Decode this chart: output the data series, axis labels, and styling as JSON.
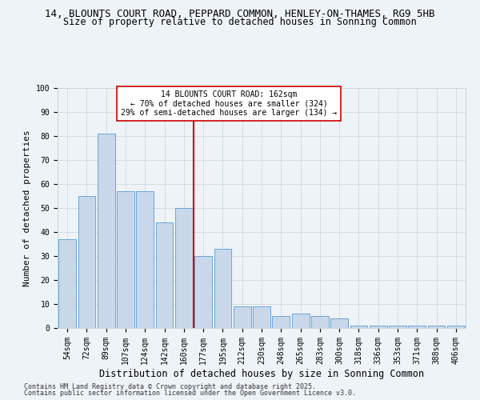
{
  "title_line1": "14, BLOUNTS COURT ROAD, PEPPARD COMMON, HENLEY-ON-THAMES, RG9 5HB",
  "title_line2": "Size of property relative to detached houses in Sonning Common",
  "xlabel": "Distribution of detached houses by size in Sonning Common",
  "ylabel": "Number of detached properties",
  "categories": [
    "54sqm",
    "72sqm",
    "89sqm",
    "107sqm",
    "124sqm",
    "142sqm",
    "160sqm",
    "177sqm",
    "195sqm",
    "212sqm",
    "230sqm",
    "248sqm",
    "265sqm",
    "283sqm",
    "300sqm",
    "318sqm",
    "336sqm",
    "353sqm",
    "371sqm",
    "388sqm",
    "406sqm"
  ],
  "values": [
    37,
    55,
    81,
    57,
    57,
    44,
    50,
    30,
    33,
    9,
    9,
    5,
    6,
    5,
    4,
    1,
    1,
    1,
    1,
    1,
    1
  ],
  "bar_color": "#c8d8ea",
  "bar_edgecolor": "#5b9bd5",
  "vline_color": "#cc0000",
  "annotation_text": "14 BLOUNTS COURT ROAD: 162sqm\n← 70% of detached houses are smaller (324)\n29% of semi-detached houses are larger (134) →",
  "annotation_box_facecolor": "#ffffff",
  "annotation_box_edgecolor": "#cc0000",
  "ylim": [
    0,
    100
  ],
  "yticks": [
    0,
    10,
    20,
    30,
    40,
    50,
    60,
    70,
    80,
    90,
    100
  ],
  "footer_line1": "Contains HM Land Registry data © Crown copyright and database right 2025.",
  "footer_line2": "Contains public sector information licensed under the Open Government Licence v3.0.",
  "background_color": "#eef3f8",
  "grid_color": "#c8d4de",
  "title_fontsize": 9,
  "subtitle_fontsize": 8.5,
  "axis_label_fontsize": 8,
  "tick_fontsize": 7,
  "annotation_fontsize": 7,
  "footer_fontsize": 6
}
